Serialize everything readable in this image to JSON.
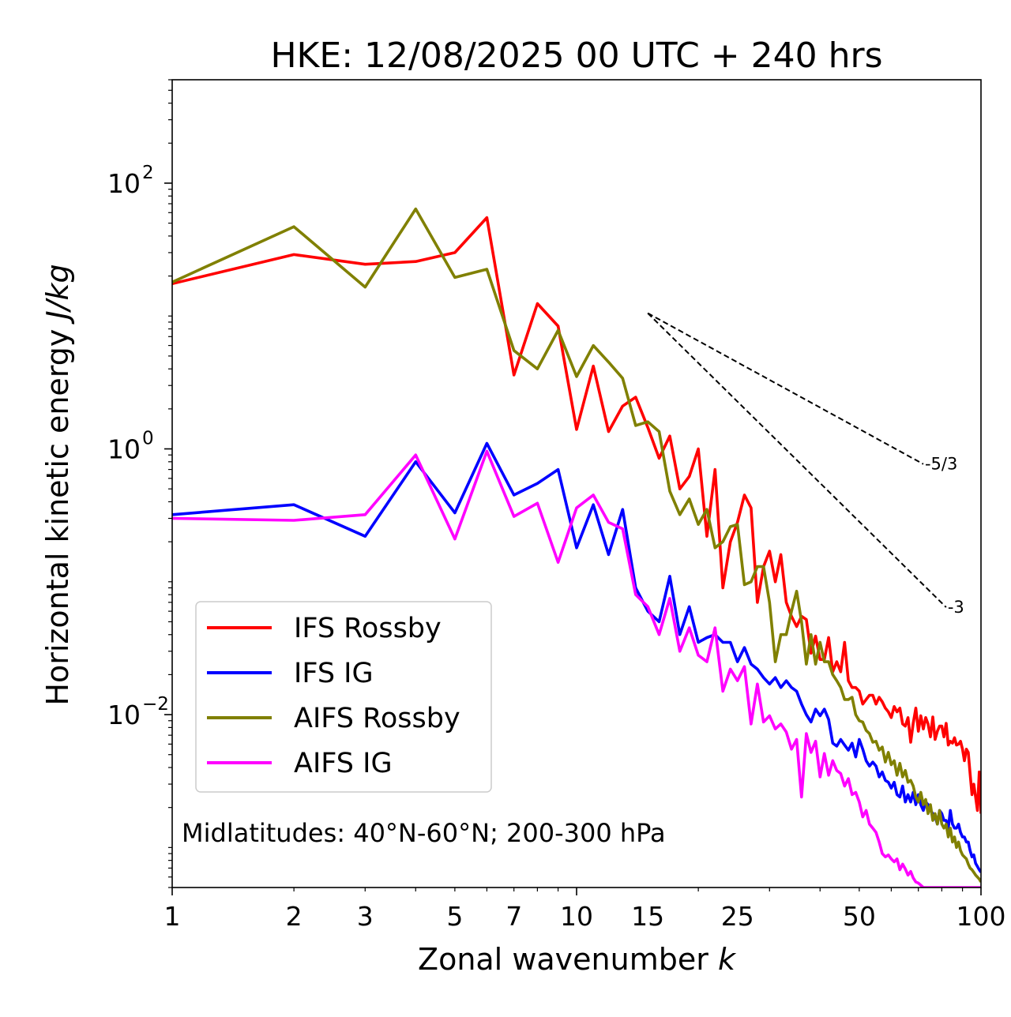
{
  "chart_data": {
    "type": "line",
    "title": "HKE: 12/08/2025 00 UTC + 240 hrs",
    "xlabel": "Zonal wavenumber",
    "xlabel_var": "k",
    "ylabel": "Horizontal kinetic energy",
    "ylabel_unit": "J/kg",
    "xscale": "log",
    "yscale": "log",
    "xlim": [
      1,
      100
    ],
    "ylim": [
      0.0005,
      600
    ],
    "x_ticks": [
      {
        "value": 1,
        "label": "1"
      },
      {
        "value": 2,
        "label": "2"
      },
      {
        "value": 3,
        "label": "3"
      },
      {
        "value": 5,
        "label": "5"
      },
      {
        "value": 7,
        "label": "7"
      },
      {
        "value": 10,
        "label": "10"
      },
      {
        "value": 15,
        "label": "15"
      },
      {
        "value": 25,
        "label": "25"
      },
      {
        "value": 50,
        "label": "50"
      },
      {
        "value": 100,
        "label": "100"
      }
    ],
    "y_ticks": [
      {
        "value": 100,
        "base": "10",
        "exp": "2"
      },
      {
        "value": 1,
        "base": "10",
        "exp": "0"
      },
      {
        "value": 0.01,
        "base": "10",
        "exp": "−2"
      }
    ],
    "annotation": "Midlatitudes: 40°N-60°N; 200-300 hPa",
    "legend_position": "lower-left",
    "series": [
      {
        "name": "IFS Rossby",
        "color": "#ff0000",
        "values": [
          17.5,
          29.0,
          24.5,
          25.7,
          30.0,
          55.0,
          3.6,
          12.4,
          8.4,
          1.4,
          4.2,
          1.35,
          2.1,
          2.45,
          1.45,
          0.85,
          1.25,
          0.5,
          0.62,
          1.0,
          0.22,
          0.7,
          0.09,
          0.2,
          0.28,
          0.45,
          0.36,
          0.07,
          0.13,
          0.17,
          0.1,
          0.16,
          0.07,
          0.055,
          0.046,
          0.055,
          0.052,
          0.029,
          0.039,
          0.026,
          0.026,
          0.038,
          0.021,
          0.025,
          0.021,
          0.035,
          0.018,
          0.016,
          0.016,
          0.015,
          0.012,
          0.013,
          0.014,
          0.014,
          0.012,
          0.0135,
          0.0125,
          0.0112,
          0.0105,
          0.0095,
          0.0115,
          0.0105,
          0.0112,
          0.0085,
          0.0082,
          0.0095,
          0.0062,
          0.0086,
          0.0112,
          0.0075,
          0.0098,
          0.0078,
          0.0095,
          0.0085,
          0.0068,
          0.0096,
          0.0065,
          0.0075,
          0.0082,
          0.0082,
          0.0068,
          0.0086,
          0.0059,
          0.0063,
          0.0061,
          0.0067,
          0.0059,
          0.006,
          0.0063,
          0.0055,
          0.0045,
          0.0055,
          0.0052,
          0.0036,
          0.0025,
          0.003,
          0.0024,
          0.0019,
          0.0037,
          0.0018
        ]
      },
      {
        "name": "IFS IG",
        "color": "#0000ff",
        "values": [
          0.32,
          0.38,
          0.22,
          0.8,
          0.33,
          1.1,
          0.45,
          0.55,
          0.7,
          0.18,
          0.38,
          0.16,
          0.35,
          0.09,
          0.06,
          0.05,
          0.11,
          0.04,
          0.065,
          0.035,
          0.038,
          0.04,
          0.035,
          0.035,
          0.025,
          0.032,
          0.024,
          0.022,
          0.019,
          0.017,
          0.019,
          0.016,
          0.018,
          0.016,
          0.015,
          0.012,
          0.01,
          0.0088,
          0.011,
          0.0098,
          0.011,
          0.0092,
          0.0061,
          0.0058,
          0.0065,
          0.0059,
          0.0054,
          0.0061,
          0.0048,
          0.0065,
          0.0055,
          0.0045,
          0.0041,
          0.0044,
          0.0041,
          0.0034,
          0.0037,
          0.0032,
          0.0031,
          0.0028,
          0.0031,
          0.0025,
          0.0024,
          0.0029,
          0.0022,
          0.0025,
          0.0022,
          0.0026,
          0.0021,
          0.0025,
          0.0021,
          0.0019,
          0.0022,
          0.0021,
          0.0019,
          0.0018,
          0.0017,
          0.0015,
          0.0019,
          0.0018,
          0.0016,
          0.0016,
          0.0014,
          0.0019,
          0.0015,
          0.0014,
          0.0014,
          0.0015,
          0.0013,
          0.0012,
          0.0012,
          0.0011,
          0.0011,
          0.00095,
          0.00085,
          0.00088,
          0.00076,
          0.00072,
          0.00068,
          0.00065
        ]
      },
      {
        "name": "AIFS Rossby",
        "color": "#808000",
        "values": [
          18.0,
          47.0,
          16.5,
          64.0,
          19.5,
          22.5,
          5.5,
          4.0,
          7.8,
          3.5,
          6.0,
          4.5,
          3.4,
          1.5,
          1.6,
          1.35,
          0.48,
          0.32,
          0.42,
          0.27,
          0.35,
          0.18,
          0.2,
          0.26,
          0.27,
          0.095,
          0.1,
          0.13,
          0.13,
          0.07,
          0.025,
          0.04,
          0.04,
          0.06,
          0.085,
          0.05,
          0.024,
          0.04,
          0.024,
          0.035,
          0.025,
          0.025,
          0.02,
          0.018,
          0.016,
          0.013,
          0.013,
          0.0135,
          0.01,
          0.009,
          0.0088,
          0.0076,
          0.0072,
          0.0062,
          0.0063,
          0.0054,
          0.0057,
          0.0044,
          0.0052,
          0.0042,
          0.0045,
          0.0035,
          0.0043,
          0.0034,
          0.0038,
          0.0031,
          0.0032,
          0.0029,
          0.0024,
          0.0022,
          0.0026,
          0.0021,
          0.0023,
          0.0018,
          0.0021,
          0.0016,
          0.0018,
          0.0015,
          0.0019,
          0.0015,
          0.0014,
          0.0015,
          0.0012,
          0.0014,
          0.0011,
          0.0012,
          0.001,
          0.0011,
          0.00095,
          0.00088,
          0.00085,
          0.00082,
          0.00075,
          0.0007,
          0.00068,
          0.00065,
          0.00062,
          0.0006,
          0.00058,
          0.00055
        ]
      },
      {
        "name": "AIFS IG",
        "color": "#ff00ff",
        "values": [
          0.3,
          0.29,
          0.32,
          0.9,
          0.21,
          0.96,
          0.31,
          0.39,
          0.14,
          0.36,
          0.45,
          0.28,
          0.25,
          0.08,
          0.065,
          0.04,
          0.075,
          0.03,
          0.045,
          0.028,
          0.025,
          0.045,
          0.015,
          0.022,
          0.018,
          0.023,
          0.0085,
          0.017,
          0.0088,
          0.0098,
          0.0078,
          0.0085,
          0.0074,
          0.0055,
          0.0065,
          0.0024,
          0.0072,
          0.0052,
          0.0063,
          0.0034,
          0.0051,
          0.0035,
          0.0045,
          0.0038,
          0.0036,
          0.0029,
          0.0033,
          0.0025,
          0.0026,
          0.0022,
          0.0017,
          0.0019,
          0.0015,
          0.0014,
          0.0013,
          0.0011,
          0.0009,
          0.00085,
          0.00088,
          0.00082,
          0.00078,
          0.00082,
          0.00068,
          0.00075,
          0.00069,
          0.00062,
          0.00066,
          0.00059,
          0.00055,
          0.00054,
          0.00052,
          0.0005,
          0.0005,
          0.0005,
          0.0005,
          0.0005,
          0.0005,
          0.0005,
          0.0005,
          0.0005,
          0.0005,
          0.0005,
          0.0005,
          0.0005,
          0.0005,
          0.0005,
          0.0005,
          0.0005,
          0.0005,
          0.0005,
          0.0005,
          0.0005,
          0.0005,
          0.0005,
          0.0005,
          0.0005,
          0.0005,
          0.0005,
          0.0005,
          0.0005
        ]
      }
    ],
    "reference_lines": [
      {
        "label": "-5/3",
        "slope": -1.6667,
        "x_start": 15,
        "y_start": 10.5,
        "x_end": 72
      },
      {
        "label": "-3",
        "slope": -3,
        "x_start": 15,
        "y_start": 10.5,
        "x_end": 82
      }
    ]
  }
}
